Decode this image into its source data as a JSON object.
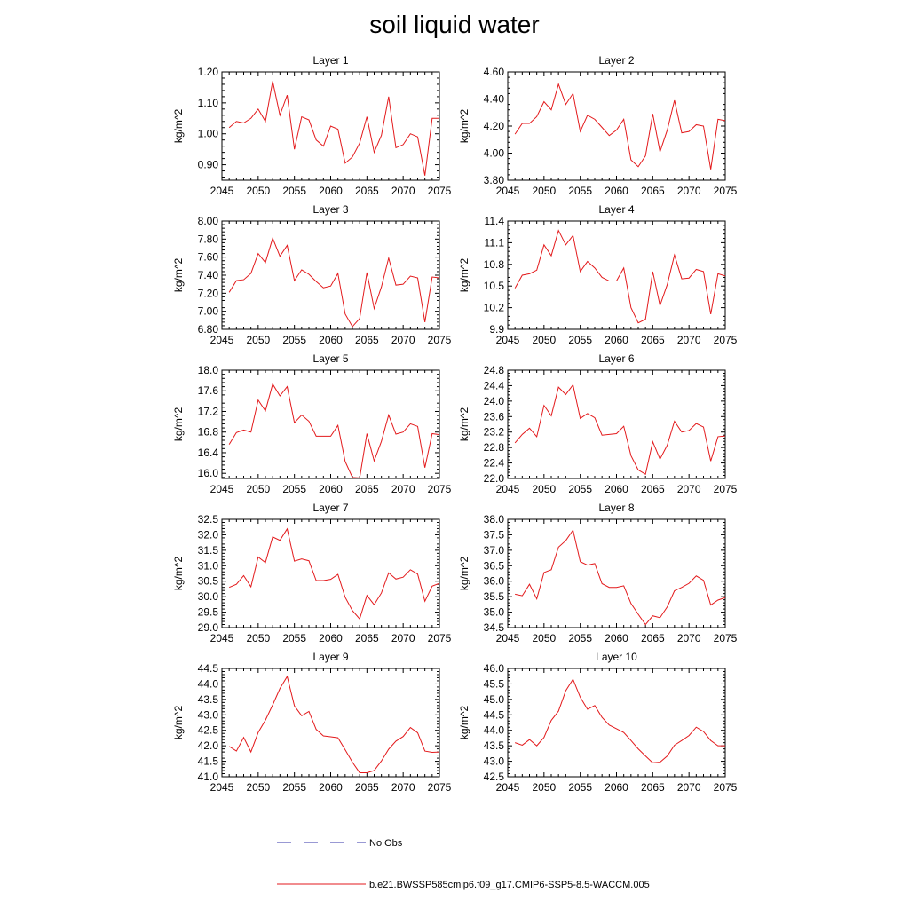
{
  "figure": {
    "title": "soil liquid water",
    "legend": [
      {
        "label": "No Obs",
        "color": "#3333aa",
        "style": "dashed"
      },
      {
        "label": "b.e21.BWSSP585cmip6.f09_g17.CMIP6-SSP5-8.5-WACCM.005",
        "color": "#e31a1c",
        "style": "solid"
      }
    ],
    "line_color": "#e31a1c"
  },
  "chart_data": [
    {
      "type": "line",
      "title": "Layer 1",
      "ylabel": "kg/m^2",
      "xlim": [
        2045,
        2075
      ],
      "ylim": [
        0.85,
        1.2
      ],
      "xticks": [
        2045,
        2050,
        2055,
        2060,
        2065,
        2070,
        2075
      ],
      "xtick_labels": [
        "2045",
        "2050",
        "2055",
        "2060",
        "2065",
        "2070",
        "2075"
      ],
      "yticks": [
        0.9,
        1.0,
        1.1,
        1.2
      ],
      "ytick_labels": [
        "0.90",
        "1.00",
        "1.10",
        "1.20"
      ],
      "x": [
        2046,
        2047,
        2048,
        2049,
        2050,
        2051,
        2052,
        2053,
        2054,
        2055,
        2056,
        2057,
        2058,
        2059,
        2060,
        2061,
        2062,
        2063,
        2064,
        2065,
        2066,
        2067,
        2068,
        2069,
        2070,
        2071,
        2072,
        2073,
        2074,
        2075
      ],
      "y": [
        1.02,
        1.04,
        1.035,
        1.05,
        1.08,
        1.04,
        1.17,
        1.06,
        1.125,
        0.95,
        1.055,
        1.045,
        0.98,
        0.96,
        1.025,
        1.015,
        0.905,
        0.925,
        0.97,
        1.055,
        0.94,
        0.995,
        1.12,
        0.955,
        0.965,
        1.0,
        0.99,
        0.865,
        1.05,
        1.05
      ]
    },
    {
      "type": "line",
      "title": "Layer 2",
      "ylabel": "kg/m^2",
      "xlim": [
        2045,
        2075
      ],
      "ylim": [
        3.8,
        4.6
      ],
      "xticks": [
        2045,
        2050,
        2055,
        2060,
        2065,
        2070,
        2075
      ],
      "xtick_labels": [
        "2045",
        "2050",
        "2055",
        "2060",
        "2065",
        "2070",
        "2075"
      ],
      "yticks": [
        3.8,
        4.0,
        4.2,
        4.4,
        4.6
      ],
      "ytick_labels": [
        "3.80",
        "4.00",
        "4.20",
        "4.40",
        "4.60"
      ],
      "x": [
        2046,
        2047,
        2048,
        2049,
        2050,
        2051,
        2052,
        2053,
        2054,
        2055,
        2056,
        2057,
        2058,
        2059,
        2060,
        2061,
        2062,
        2063,
        2064,
        2065,
        2066,
        2067,
        2068,
        2069,
        2070,
        2071,
        2072,
        2073,
        2074,
        2075
      ],
      "y": [
        4.14,
        4.22,
        4.22,
        4.27,
        4.38,
        4.32,
        4.51,
        4.36,
        4.44,
        4.16,
        4.28,
        4.25,
        4.19,
        4.13,
        4.17,
        4.25,
        3.95,
        3.9,
        3.98,
        4.29,
        4.01,
        4.17,
        4.39,
        4.15,
        4.16,
        4.21,
        4.2,
        3.88,
        4.25,
        4.24
      ]
    },
    {
      "type": "line",
      "title": "Layer 3",
      "ylabel": "kg/m^2",
      "xlim": [
        2045,
        2075
      ],
      "ylim": [
        6.8,
        8.0
      ],
      "xticks": [
        2045,
        2050,
        2055,
        2060,
        2065,
        2070,
        2075
      ],
      "xtick_labels": [
        "2045",
        "2050",
        "2055",
        "2060",
        "2065",
        "2070",
        "2075"
      ],
      "yticks": [
        6.8,
        7.0,
        7.2,
        7.4,
        7.6,
        7.8,
        8.0
      ],
      "ytick_labels": [
        "6.80",
        "7.00",
        "7.20",
        "7.40",
        "7.60",
        "7.80",
        "8.00"
      ],
      "x": [
        2046,
        2047,
        2048,
        2049,
        2050,
        2051,
        2052,
        2053,
        2054,
        2055,
        2056,
        2057,
        2058,
        2059,
        2060,
        2061,
        2062,
        2063,
        2064,
        2065,
        2066,
        2067,
        2068,
        2069,
        2070,
        2071,
        2072,
        2073,
        2074,
        2075
      ],
      "y": [
        7.21,
        7.34,
        7.35,
        7.42,
        7.64,
        7.54,
        7.81,
        7.61,
        7.73,
        7.34,
        7.46,
        7.41,
        7.33,
        7.26,
        7.28,
        7.42,
        6.97,
        6.83,
        6.92,
        7.43,
        7.03,
        7.27,
        7.59,
        7.29,
        7.3,
        7.39,
        7.37,
        6.88,
        7.38,
        7.37
      ]
    },
    {
      "type": "line",
      "title": "Layer 4",
      "ylabel": "kg/m^2",
      "xlim": [
        2045,
        2075
      ],
      "ylim": [
        9.9,
        11.4
      ],
      "xticks": [
        2045,
        2050,
        2055,
        2060,
        2065,
        2070,
        2075
      ],
      "xtick_labels": [
        "2045",
        "2050",
        "2055",
        "2060",
        "2065",
        "2070",
        "2075"
      ],
      "yticks": [
        9.9,
        10.2,
        10.5,
        10.8,
        11.1,
        11.4
      ],
      "ytick_labels": [
        "9.9",
        "10.2",
        "10.5",
        "10.8",
        "11.1",
        "11.4"
      ],
      "x": [
        2046,
        2047,
        2048,
        2049,
        2050,
        2051,
        2052,
        2053,
        2054,
        2055,
        2056,
        2057,
        2058,
        2059,
        2060,
        2061,
        2062,
        2063,
        2064,
        2065,
        2066,
        2067,
        2068,
        2069,
        2070,
        2071,
        2072,
        2073,
        2074,
        2075
      ],
      "y": [
        10.47,
        10.65,
        10.67,
        10.72,
        11.07,
        10.92,
        11.27,
        11.07,
        11.2,
        10.7,
        10.84,
        10.75,
        10.62,
        10.57,
        10.57,
        10.75,
        10.2,
        9.99,
        10.04,
        10.7,
        10.23,
        10.52,
        10.93,
        10.6,
        10.61,
        10.73,
        10.7,
        10.11,
        10.67,
        10.64
      ]
    },
    {
      "type": "line",
      "title": "Layer 5",
      "ylabel": "kg/m^2",
      "xlim": [
        2045,
        2075
      ],
      "ylim": [
        15.9,
        18.0
      ],
      "xticks": [
        2045,
        2050,
        2055,
        2060,
        2065,
        2070,
        2075
      ],
      "xtick_labels": [
        "2045",
        "2050",
        "2055",
        "2060",
        "2065",
        "2070",
        "2075"
      ],
      "yticks": [
        16.0,
        16.4,
        16.8,
        17.2,
        17.6,
        18.0
      ],
      "ytick_labels": [
        "16.0",
        "16.4",
        "16.8",
        "17.2",
        "17.6",
        "18.0"
      ],
      "x": [
        2046,
        2047,
        2048,
        2049,
        2050,
        2051,
        2052,
        2053,
        2054,
        2055,
        2056,
        2057,
        2058,
        2059,
        2060,
        2061,
        2062,
        2063,
        2064,
        2065,
        2066,
        2067,
        2068,
        2069,
        2070,
        2071,
        2072,
        2073,
        2074,
        2075
      ],
      "y": [
        16.56,
        16.79,
        16.84,
        16.8,
        17.42,
        17.21,
        17.73,
        17.5,
        17.68,
        16.98,
        17.13,
        17.01,
        16.72,
        16.72,
        16.72,
        16.93,
        16.23,
        15.92,
        15.91,
        16.77,
        16.24,
        16.62,
        17.13,
        16.76,
        16.8,
        16.96,
        16.91,
        16.11,
        16.77,
        16.75
      ]
    },
    {
      "type": "line",
      "title": "Layer 6",
      "ylabel": "kg/m^2",
      "xlim": [
        2045,
        2075
      ],
      "ylim": [
        22.0,
        24.8
      ],
      "xticks": [
        2045,
        2050,
        2055,
        2060,
        2065,
        2070,
        2075
      ],
      "xtick_labels": [
        "2045",
        "2050",
        "2055",
        "2060",
        "2065",
        "2070",
        "2075"
      ],
      "yticks": [
        22.0,
        22.4,
        22.8,
        23.2,
        23.6,
        24.0,
        24.4,
        24.8
      ],
      "ytick_labels": [
        "22.0",
        "22.4",
        "22.8",
        "23.2",
        "23.6",
        "24.0",
        "24.4",
        "24.8"
      ],
      "x": [
        2046,
        2047,
        2048,
        2049,
        2050,
        2051,
        2052,
        2053,
        2054,
        2055,
        2056,
        2057,
        2058,
        2059,
        2060,
        2061,
        2062,
        2063,
        2064,
        2065,
        2066,
        2067,
        2068,
        2069,
        2070,
        2071,
        2072,
        2073,
        2074,
        2075
      ],
      "y": [
        22.92,
        23.14,
        23.3,
        23.08,
        23.89,
        23.62,
        24.36,
        24.17,
        24.42,
        23.55,
        23.68,
        23.57,
        23.12,
        23.14,
        23.16,
        23.35,
        22.59,
        22.22,
        22.11,
        22.95,
        22.5,
        22.86,
        23.48,
        23.2,
        23.24,
        23.42,
        23.33,
        22.45,
        23.08,
        23.1
      ]
    },
    {
      "type": "line",
      "title": "Layer 7",
      "ylabel": "kg/m^2",
      "xlim": [
        2045,
        2075
      ],
      "ylim": [
        29.0,
        32.5
      ],
      "xticks": [
        2045,
        2050,
        2055,
        2060,
        2065,
        2070,
        2075
      ],
      "xtick_labels": [
        "2045",
        "2050",
        "2055",
        "2060",
        "2065",
        "2070",
        "2075"
      ],
      "yticks": [
        29.0,
        29.5,
        30.0,
        30.5,
        31.0,
        31.5,
        32.0,
        32.5
      ],
      "ytick_labels": [
        "29.0",
        "29.5",
        "30.0",
        "30.5",
        "31.0",
        "31.5",
        "32.0",
        "32.5"
      ],
      "x": [
        2046,
        2047,
        2048,
        2049,
        2050,
        2051,
        2052,
        2053,
        2054,
        2055,
        2056,
        2057,
        2058,
        2059,
        2060,
        2061,
        2062,
        2063,
        2064,
        2065,
        2066,
        2067,
        2068,
        2069,
        2070,
        2071,
        2072,
        2073,
        2074,
        2075
      ],
      "y": [
        30.3,
        30.4,
        30.68,
        30.32,
        31.28,
        31.1,
        31.93,
        31.82,
        32.19,
        31.15,
        31.22,
        31.16,
        30.52,
        30.52,
        30.56,
        30.72,
        29.98,
        29.55,
        29.28,
        30.04,
        29.74,
        30.12,
        30.77,
        30.57,
        30.63,
        30.87,
        30.73,
        29.85,
        30.34,
        30.43
      ]
    },
    {
      "type": "line",
      "title": "Layer 8",
      "ylabel": "kg/m^2",
      "xlim": [
        2045,
        2075
      ],
      "ylim": [
        34.5,
        38.0
      ],
      "xticks": [
        2045,
        2050,
        2055,
        2060,
        2065,
        2070,
        2075
      ],
      "xtick_labels": [
        "2045",
        "2050",
        "2055",
        "2060",
        "2065",
        "2070",
        "2075"
      ],
      "yticks": [
        34.5,
        35.0,
        35.5,
        36.0,
        36.5,
        37.0,
        37.5,
        38.0
      ],
      "ytick_labels": [
        "34.5",
        "35.0",
        "35.5",
        "36.0",
        "36.5",
        "37.0",
        "37.5",
        "38.0"
      ],
      "x": [
        2046,
        2047,
        2048,
        2049,
        2050,
        2051,
        2052,
        2053,
        2054,
        2055,
        2056,
        2057,
        2058,
        2059,
        2060,
        2061,
        2062,
        2063,
        2064,
        2065,
        2066,
        2067,
        2068,
        2069,
        2070,
        2071,
        2072,
        2073,
        2074,
        2075
      ],
      "y": [
        35.58,
        35.53,
        35.9,
        35.43,
        36.28,
        36.37,
        37.1,
        37.31,
        37.65,
        36.63,
        36.52,
        36.57,
        35.92,
        35.8,
        35.8,
        35.85,
        35.28,
        34.93,
        34.6,
        34.88,
        34.82,
        35.17,
        35.69,
        35.8,
        35.93,
        36.17,
        36.03,
        35.23,
        35.39,
        35.47
      ]
    },
    {
      "type": "line",
      "title": "Layer 9",
      "ylabel": "kg/m^2",
      "xlim": [
        2045,
        2075
      ],
      "ylim": [
        41.0,
        44.5
      ],
      "xticks": [
        2045,
        2050,
        2055,
        2060,
        2065,
        2070,
        2075
      ],
      "xtick_labels": [
        "2045",
        "2050",
        "2055",
        "2060",
        "2065",
        "2070",
        "2075"
      ],
      "yticks": [
        41.0,
        41.5,
        42.0,
        42.5,
        43.0,
        43.5,
        44.0,
        44.5
      ],
      "ytick_labels": [
        "41.0",
        "41.5",
        "42.0",
        "42.5",
        "43.0",
        "43.5",
        "44.0",
        "44.5"
      ],
      "x": [
        2046,
        2047,
        2048,
        2049,
        2050,
        2051,
        2052,
        2053,
        2054,
        2055,
        2056,
        2057,
        2058,
        2059,
        2060,
        2061,
        2062,
        2063,
        2064,
        2065,
        2066,
        2067,
        2068,
        2069,
        2070,
        2071,
        2072,
        2073,
        2074,
        2075
      ],
      "y": [
        41.98,
        41.83,
        42.27,
        41.8,
        42.43,
        42.83,
        43.32,
        43.85,
        44.24,
        43.29,
        42.97,
        43.11,
        42.53,
        42.32,
        42.29,
        42.26,
        41.87,
        41.47,
        41.13,
        41.13,
        41.2,
        41.51,
        41.89,
        42.15,
        42.3,
        42.59,
        42.42,
        41.83,
        41.79,
        41.8
      ]
    },
    {
      "type": "line",
      "title": "Layer 10",
      "ylabel": "kg/m^2",
      "xlim": [
        2045,
        2075
      ],
      "ylim": [
        42.5,
        46.0
      ],
      "xticks": [
        2045,
        2050,
        2055,
        2060,
        2065,
        2070,
        2075
      ],
      "xtick_labels": [
        "2045",
        "2050",
        "2055",
        "2060",
        "2065",
        "2070",
        "2075"
      ],
      "yticks": [
        42.5,
        43.0,
        43.5,
        44.0,
        44.5,
        45.0,
        45.5,
        46.0
      ],
      "ytick_labels": [
        "42.5",
        "43.0",
        "43.5",
        "44.0",
        "44.5",
        "45.0",
        "45.5",
        "46.0"
      ],
      "x": [
        2046,
        2047,
        2048,
        2049,
        2050,
        2051,
        2052,
        2053,
        2054,
        2055,
        2056,
        2057,
        2058,
        2059,
        2060,
        2061,
        2062,
        2063,
        2064,
        2065,
        2066,
        2067,
        2068,
        2069,
        2070,
        2071,
        2072,
        2073,
        2074,
        2075
      ],
      "y": [
        43.6,
        43.52,
        43.7,
        43.5,
        43.77,
        44.32,
        44.62,
        45.28,
        45.65,
        45.07,
        44.68,
        44.8,
        44.42,
        44.17,
        44.05,
        43.93,
        43.67,
        43.4,
        43.17,
        42.95,
        42.97,
        43.17,
        43.52,
        43.67,
        43.83,
        44.1,
        43.96,
        43.67,
        43.5,
        43.5
      ]
    }
  ]
}
